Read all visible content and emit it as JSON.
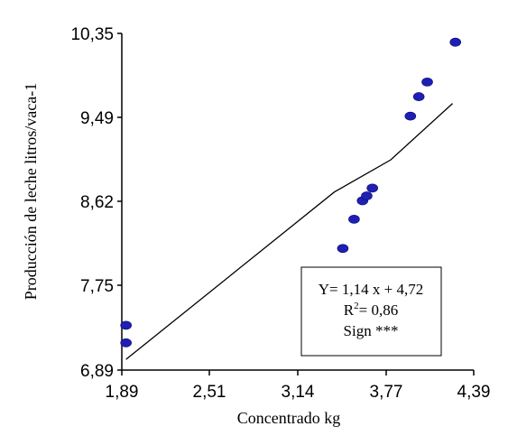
{
  "chart_data": {
    "type": "scatter",
    "title": "",
    "xlabel": "Concentrado kg",
    "ylabel": "Producción de leche litros/vaca-1",
    "xlim": [
      1.89,
      4.39
    ],
    "ylim": [
      6.89,
      10.35
    ],
    "x_ticks": [
      "1,89",
      "2,51",
      "3,14",
      "3,77",
      "4,39"
    ],
    "y_ticks": [
      "6,89",
      "7,75",
      "8,62",
      "9,49",
      "10,35"
    ],
    "grid": false,
    "points": [
      {
        "x": 1.92,
        "y": 7.35
      },
      {
        "x": 1.92,
        "y": 7.17
      },
      {
        "x": 3.46,
        "y": 8.14
      },
      {
        "x": 3.54,
        "y": 8.44
      },
      {
        "x": 3.6,
        "y": 8.63
      },
      {
        "x": 3.63,
        "y": 8.68
      },
      {
        "x": 3.67,
        "y": 8.76
      },
      {
        "x": 3.94,
        "y": 9.5
      },
      {
        "x": 4.0,
        "y": 9.7
      },
      {
        "x": 4.06,
        "y": 9.85
      },
      {
        "x": 4.26,
        "y": 10.26
      }
    ],
    "trendline": {
      "x": [
        1.92,
        3.4,
        3.8,
        4.24
      ],
      "y": [
        7.0,
        8.72,
        9.05,
        9.63
      ]
    },
    "annotation": {
      "equation": "Y= 1,14 x + 4,72",
      "r2_label": "R",
      "r2_sup": "2",
      "r2_value": "= 0,86",
      "sign": "Sign ***"
    },
    "colors": {
      "points": "#1f1fb4",
      "line": "#000000"
    }
  }
}
